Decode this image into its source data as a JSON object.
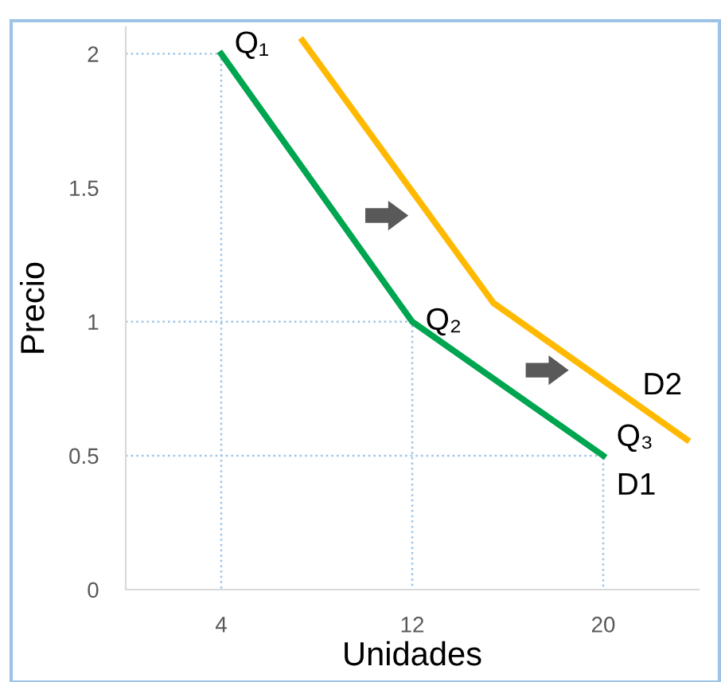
{
  "chart_data": {
    "type": "line",
    "xlabel": "Unidades",
    "ylabel": "Precio",
    "xlim": [
      0,
      24
    ],
    "ylim": [
      0,
      2.1
    ],
    "xticks": [
      4,
      12,
      20
    ],
    "yticks": [
      0,
      0.5,
      1,
      1.5,
      2
    ],
    "grid": false,
    "legend": false,
    "marker": "none",
    "series": [
      {
        "color": "#9dc3e6",
        "line_style": "dotted",
        "x": [
          0,
          4,
          4
        ],
        "values": [
          2,
          2,
          0
        ]
      },
      {
        "color": "#9dc3e6",
        "line_style": "dotted",
        "x": [
          0,
          12,
          12
        ],
        "values": [
          1,
          1,
          0
        ]
      },
      {
        "color": "#9dc3e6",
        "line_style": "dotted",
        "x": [
          0,
          20,
          20
        ],
        "values": [
          0.5,
          0.5,
          0
        ]
      },
      {
        "color": "#00a550",
        "line_style": "solid",
        "x": [
          4,
          12,
          20
        ],
        "values": [
          2,
          1,
          0.5
        ]
      },
      {
        "color": "#ffb900",
        "line_style": "solid",
        "x": [
          7.4,
          15.4,
          23.5
        ],
        "values": [
          2.05,
          1.07,
          0.56
        ]
      }
    ],
    "annotations": [
      {
        "text": "Q₁",
        "x": 4,
        "y": 2
      },
      {
        "text": "Q₂",
        "x": 12,
        "y": 1
      },
      {
        "text": "Q₃",
        "x": 20,
        "y": 0.5
      },
      {
        "text": "D1",
        "x": 20,
        "y": 0.5
      },
      {
        "text": "D2",
        "x": 23.5,
        "y": 0.56
      }
    ]
  }
}
